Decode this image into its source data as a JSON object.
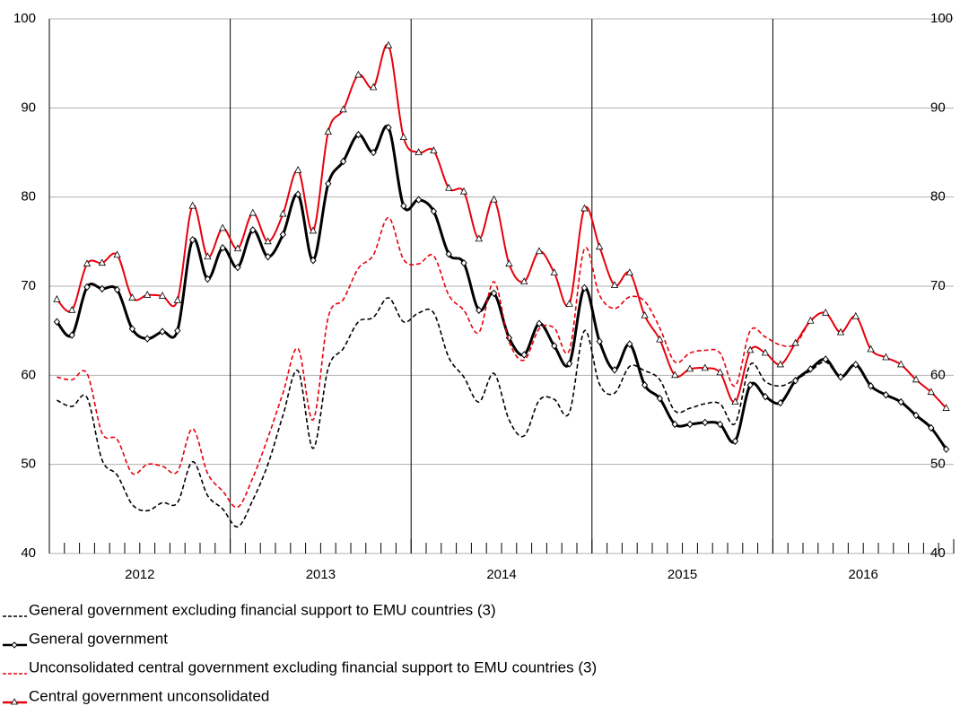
{
  "chart_data": {
    "type": "line",
    "categories": [
      null,
      null,
      null,
      null,
      null,
      "2012",
      null,
      null,
      null,
      null,
      null,
      null,
      null,
      null,
      null,
      null,
      null,
      "2013",
      null,
      null,
      null,
      null,
      null,
      null,
      null,
      null,
      null,
      null,
      null,
      "2014",
      null,
      null,
      null,
      null,
      null,
      null,
      null,
      null,
      null,
      null,
      null,
      "2015",
      null,
      null,
      null,
      null,
      null,
      null,
      null,
      null,
      null,
      null,
      null,
      "2016",
      null,
      null,
      null,
      null,
      null,
      null
    ],
    "ylim": [
      40,
      100
    ],
    "yticks": [
      40,
      50,
      60,
      70,
      80,
      90,
      100
    ],
    "grid": true,
    "legend": "bottom",
    "series": [
      {
        "name": "General government excluding financial support to EMU countries (3)",
        "color": "#000000",
        "dashed": true,
        "marker": null,
        "values": [
          57.2,
          56.5,
          57.5,
          50.5,
          48.8,
          45.5,
          44.8,
          45.7,
          45.7,
          50.3,
          46.5,
          45.0,
          43.0,
          46.0,
          50.0,
          55.5,
          60.5,
          51.8,
          60.8,
          63.0,
          66.0,
          66.5,
          68.7,
          66.0,
          67.0,
          67.0,
          62.0,
          59.8,
          57.0,
          60.2,
          55.0,
          53.2,
          57.2,
          57.3,
          55.8,
          65.0,
          59.0,
          58.0,
          61.0,
          60.5,
          59.5,
          56.0,
          56.3,
          56.8,
          56.8,
          54.6,
          61.2,
          59.3,
          58.8,
          59.5,
          60.5,
          61.5,
          59.8,
          61.2,
          58.8,
          57.8,
          57.0,
          55.5,
          54.1,
          51.7
        ]
      },
      {
        "name": "General government",
        "color": "#000000",
        "dashed": false,
        "marker": "diamond",
        "values": [
          66.0,
          64.5,
          69.9,
          69.7,
          69.6,
          65.2,
          64.1,
          64.9,
          65.0,
          75.2,
          70.8,
          74.3,
          72.1,
          76.3,
          73.3,
          75.8,
          80.3,
          72.9,
          81.5,
          84.0,
          87.0,
          85.0,
          87.8,
          79.0,
          79.7,
          78.4,
          73.6,
          72.6,
          67.3,
          69.2,
          64.2,
          62.3,
          65.8,
          63.3,
          61.3,
          69.8,
          63.8,
          60.6,
          63.5,
          58.9,
          57.4,
          54.5,
          54.5,
          54.7,
          54.5,
          52.6,
          58.9,
          57.6,
          56.9,
          59.4,
          60.7,
          61.8,
          59.8,
          61.2,
          58.8,
          57.8,
          57.0,
          55.5,
          54.1,
          51.7
        ]
      },
      {
        "name": "Unconsolidated central government excluding financial support to EMU countries (3)",
        "color": "#e8000b",
        "dashed": true,
        "marker": null,
        "values": [
          59.8,
          59.5,
          60.2,
          53.5,
          52.8,
          49.0,
          50.0,
          49.8,
          49.2,
          54.0,
          49.0,
          47.0,
          45.2,
          48.5,
          53.0,
          58.0,
          63.0,
          55.0,
          66.5,
          68.5,
          72.0,
          73.5,
          77.7,
          73.0,
          72.5,
          73.4,
          69.0,
          67.3,
          64.8,
          70.5,
          63.8,
          61.7,
          65.2,
          65.3,
          62.8,
          74.2,
          69.0,
          67.5,
          68.8,
          68.3,
          65.3,
          61.5,
          62.5,
          62.8,
          62.5,
          58.8,
          65.0,
          64.3,
          63.4,
          63.5,
          66.1,
          67.0,
          64.8,
          66.6,
          62.9,
          62.0,
          61.2,
          59.5,
          58.1,
          56.3
        ]
      },
      {
        "name": "Central government unconsolidated",
        "color": "#e8000b",
        "dashed": false,
        "marker": "triangle",
        "values": [
          68.5,
          67.3,
          72.5,
          72.6,
          73.5,
          68.7,
          69.0,
          68.9,
          68.4,
          79.0,
          73.3,
          76.5,
          74.2,
          78.2,
          75.0,
          78.1,
          83.0,
          76.2,
          87.3,
          89.8,
          93.7,
          92.3,
          97.0,
          86.7,
          85.0,
          85.2,
          81.0,
          80.6,
          75.3,
          79.7,
          72.5,
          70.5,
          73.9,
          71.5,
          68.0,
          78.7,
          74.4,
          70.1,
          71.5,
          66.7,
          64.0,
          60.0,
          60.7,
          60.8,
          60.3,
          57.0,
          62.8,
          62.5,
          61.2,
          63.6,
          66.1,
          67.0,
          64.8,
          66.6,
          62.9,
          62.0,
          61.2,
          59.5,
          58.1,
          56.3
        ]
      }
    ]
  }
}
